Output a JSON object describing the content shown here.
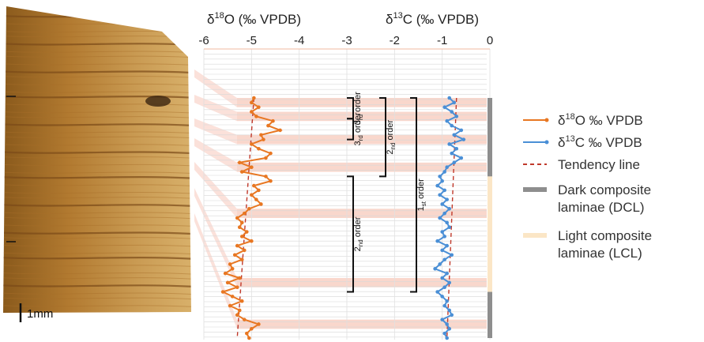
{
  "chart_data": {
    "type": "line",
    "panels": [
      {
        "id": "d18O",
        "axis_title": {
          "prefix": "δ",
          "sup": "18",
          "main": "O (‰ VPDB)"
        },
        "ticks": [
          "-6",
          "-5",
          "-4",
          "-3"
        ],
        "tick_values": [
          -6,
          -5,
          -4,
          -3
        ],
        "xlim": [
          -6,
          -3.0
        ]
      },
      {
        "id": "d13C",
        "axis_title": {
          "prefix": "δ",
          "sup": "13",
          "main": "C (‰ VPDB)"
        },
        "ticks": [
          "-2",
          "-1",
          "0"
        ],
        "tick_values": [
          -2,
          -1,
          0
        ],
        "xlim": [
          -3.0,
          0
        ]
      }
    ],
    "series": [
      {
        "name_prefix": "δ",
        "name_sup": "18",
        "name_main": "O ‰ VPDB",
        "color": "#e87722",
        "x": [
          -4.95,
          -5.0,
          -4.85,
          -5.0,
          -4.9,
          -4.55,
          -4.65,
          -4.4,
          -4.8,
          -4.75,
          -5.0,
          -4.85,
          -4.6,
          -4.7,
          -5.25,
          -5.0,
          -5.2,
          -4.7,
          -4.6,
          -4.95,
          -4.85,
          -5.0,
          -4.9,
          -4.8,
          -5.05,
          -5.15,
          -5.3,
          -5.2,
          -5.25,
          -5.1,
          -5.2,
          -5.0,
          -5.3,
          -5.15,
          -5.35,
          -5.2,
          -5.45,
          -5.4,
          -5.55,
          -5.25,
          -5.5,
          -5.3,
          -5.6,
          -5.4,
          -5.2,
          -5.45,
          -5.25,
          -5.3,
          -5.15,
          -4.85,
          -5.0,
          -5.1,
          -5.05
        ],
        "y": [
          0,
          1,
          2,
          3,
          4,
          5,
          6,
          7,
          8,
          9,
          10,
          11,
          12,
          13,
          14,
          15,
          16,
          17,
          18,
          19,
          20,
          21,
          22,
          23,
          24,
          25,
          26,
          27,
          28,
          29,
          30,
          31,
          32,
          33,
          34,
          35,
          36,
          37,
          38,
          39,
          40,
          41,
          42,
          43,
          44,
          45,
          46,
          47,
          48,
          49,
          50,
          51,
          52
        ]
      },
      {
        "name_prefix": "δ",
        "name_sup": "13",
        "name_main": "C ‰ VPDB",
        "color": "#4a8fd6",
        "x": [
          -0.85,
          -0.75,
          -0.95,
          -0.8,
          -0.7,
          -0.9,
          -0.8,
          -0.6,
          -0.75,
          -0.55,
          -0.85,
          -0.7,
          -0.8,
          -0.6,
          -0.75,
          -0.9,
          -0.95,
          -1.05,
          -1.0,
          -1.1,
          -0.95,
          -1.05,
          -0.9,
          -1.0,
          -0.85,
          -0.95,
          -1.05,
          -0.9,
          -0.85,
          -1.0,
          -0.95,
          -1.1,
          -0.9,
          -1.0,
          -0.8,
          -0.95,
          -1.05,
          -1.15,
          -0.9,
          -1.0,
          -0.85,
          -0.95,
          -1.1,
          -1.0,
          -0.9,
          -0.95,
          -0.85,
          -0.8,
          -1.0,
          -0.9,
          -0.85,
          -0.95,
          -0.9
        ],
        "y": [
          0,
          1,
          2,
          3,
          4,
          5,
          6,
          7,
          8,
          9,
          10,
          11,
          12,
          13,
          14,
          15,
          16,
          17,
          18,
          19,
          20,
          21,
          22,
          23,
          24,
          25,
          26,
          27,
          28,
          29,
          30,
          31,
          32,
          33,
          34,
          35,
          36,
          37,
          38,
          39,
          40,
          41,
          42,
          43,
          44,
          45,
          46,
          47,
          48,
          49,
          50,
          51,
          52
        ]
      }
    ],
    "tendency_lines": [
      {
        "series": "d18O",
        "x_start": -4.95,
        "x_end": -5.3,
        "color": "#c0392b"
      },
      {
        "series": "d13C",
        "x_start": -0.7,
        "x_end": -0.9,
        "color": "#c0392b"
      }
    ],
    "dcl_bands": [
      [
        0,
        2
      ],
      [
        3,
        5
      ],
      [
        8,
        10
      ],
      [
        14,
        16
      ],
      [
        24,
        26
      ],
      [
        39,
        41
      ],
      [
        48,
        50
      ]
    ],
    "composite_bar": [
      {
        "type": "dark",
        "y_from": 0,
        "y_to": 17,
        "color": "#8e8e8e"
      },
      {
        "type": "light",
        "y_from": 17,
        "y_to": 42,
        "color": "#fbe6c6"
      },
      {
        "type": "dark",
        "y_from": 42,
        "y_to": 52,
        "color": "#8e8e8e"
      }
    ],
    "brackets": [
      {
        "label": "3rd order",
        "ord": "3",
        "sup": "rd",
        "word": " order",
        "y_from": 0,
        "y_to": 4.5,
        "col": 0
      },
      {
        "label": "3rd order",
        "ord": "3",
        "sup": "rd",
        "word": " order",
        "y_from": 4.5,
        "y_to": 9,
        "col": 0
      },
      {
        "label": "2nd order",
        "ord": "2",
        "sup": "nd",
        "word": " order",
        "y_from": 0,
        "y_to": 17,
        "col": 1
      },
      {
        "label": "1st order",
        "ord": "1",
        "sup": "st",
        "word": " order",
        "y_from": 0,
        "y_to": 42,
        "col": 2
      },
      {
        "label": "2nd order",
        "ord": "2",
        "sup": "nd",
        "word": " order",
        "y_from": 17,
        "y_to": 42,
        "col": 0
      }
    ],
    "legend": {
      "placement": "right",
      "entries": [
        {
          "kind": "series",
          "prefix": "δ",
          "sup": "18",
          "main": "O ‰ VPDB",
          "color": "#e87722"
        },
        {
          "kind": "series",
          "prefix": "δ",
          "sup": "13",
          "main": "C ‰ VPDB",
          "color": "#4a8fd6"
        },
        {
          "kind": "dashed",
          "lines": [
            "Tendency line"
          ],
          "color": "#c0392b"
        },
        {
          "kind": "bar",
          "lines": [
            "Dark composite",
            "laminae (DCL)"
          ],
          "color": "#8e8e8e"
        },
        {
          "kind": "bar",
          "lines": [
            "Light composite",
            "laminae (LCL)"
          ],
          "color": "#fbe6c6"
        }
      ]
    },
    "scale_bar": {
      "label": "1mm"
    },
    "grid": true
  }
}
